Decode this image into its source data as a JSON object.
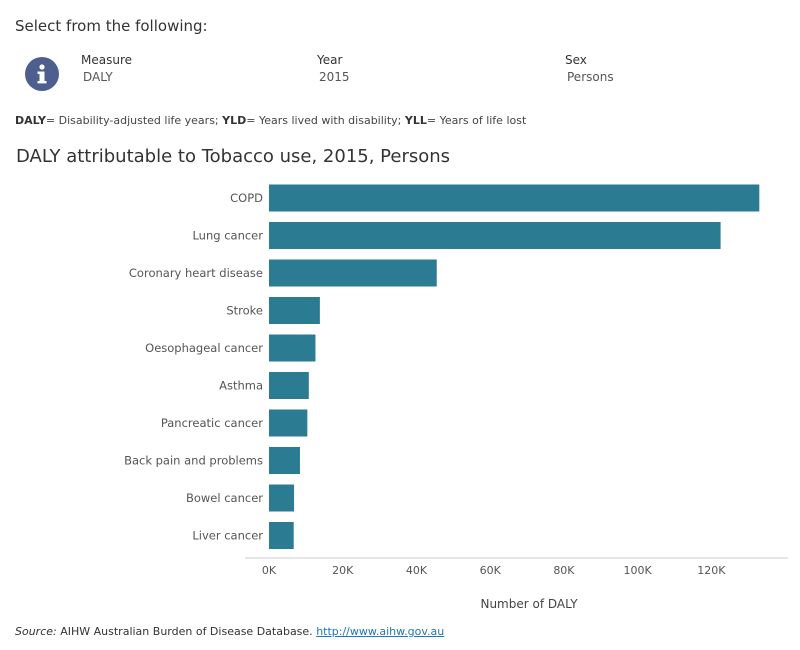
{
  "header": {
    "select_title": "Select from the following:",
    "info_icon": "info-icon"
  },
  "filters": {
    "measure": {
      "label": "Measure",
      "value": "DALY"
    },
    "year": {
      "label": "Year",
      "value": "2015"
    },
    "sex": {
      "label": "Sex",
      "value": "Persons"
    }
  },
  "legend": {
    "daly_abbr": "DALY",
    "daly_def": "= Disability-adjusted life years; ",
    "yld_abbr": "YLD",
    "yld_def": "= Years lived with disability; ",
    "yll_abbr": "YLL",
    "yll_def": "= Years of life lost"
  },
  "source": {
    "label": "Source:",
    "text": " AIHW Australian Burden of Disease Database. ",
    "link": "http://www.aihw.gov.au"
  },
  "colors": {
    "bar": "#2b7b93",
    "axis": "#cccccc"
  },
  "chart_data": {
    "type": "bar",
    "orientation": "horizontal",
    "title": "DALY attributable to Tobacco use, 2015, Persons",
    "xlabel": "Number of DALY",
    "ylabel": "",
    "categories": [
      "COPD",
      "Lung cancer",
      "Coronary heart disease",
      "Stroke",
      "Oesophageal cancer",
      "Asthma",
      "Pancreatic cancer",
      "Back pain and problems",
      "Bowel cancer",
      "Liver cancer"
    ],
    "values": [
      133000,
      122500,
      45500,
      13800,
      12600,
      10800,
      10400,
      8400,
      6800,
      6700
    ],
    "xlim": [
      0,
      134000
    ],
    "ticks": [
      0,
      20000,
      40000,
      60000,
      80000,
      100000,
      120000
    ],
    "tick_labels": [
      "0K",
      "20K",
      "40K",
      "60K",
      "80K",
      "100K",
      "120K"
    ],
    "grid": false
  }
}
